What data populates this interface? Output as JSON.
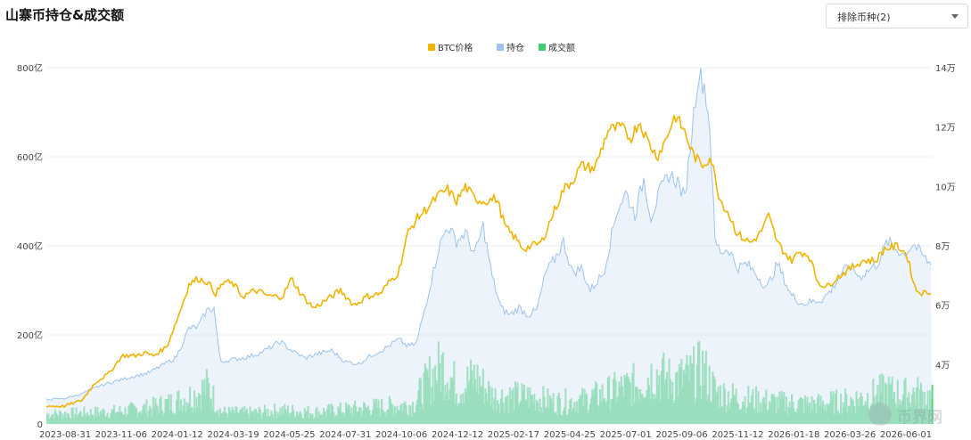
{
  "header": {
    "title": "山寨币持仓&成交额"
  },
  "filter": {
    "label": "排除币种(2)"
  },
  "watermark": {
    "text": "币界网"
  },
  "chart_data": {
    "type": "line",
    "legend_position": "top-center",
    "grid": true,
    "legend": [
      {
        "name": "BTC价格",
        "color": "#f0b400"
      },
      {
        "name": "持仓",
        "color": "#9cc3ee"
      },
      {
        "name": "成交额",
        "color": "#3ecf6f"
      }
    ],
    "y_left": {
      "ticks": [
        "0",
        "200亿",
        "400亿",
        "600亿",
        "800亿"
      ],
      "range": [
        0,
        800
      ],
      "unit": "亿"
    },
    "y_right": {
      "ticks": [
        "4万",
        "6万",
        "8万",
        "10万",
        "12万",
        "14万"
      ],
      "range": [
        2,
        14
      ],
      "unit": "万"
    },
    "x_ticks": [
      "2023-08-31",
      "2023-11-06",
      "2024-01-12",
      "2024-03-19",
      "2024-05-25",
      "2024-07-31",
      "2024-10-06",
      "2024-12-12",
      "2025-02-17",
      "2025-04-25",
      "2025-07-01",
      "2025-09-06",
      "2025-11-12",
      "2026-01-18",
      "2026-03-26",
      "2026-06-01"
    ],
    "series": [
      {
        "name": "BTC价格",
        "axis": "right",
        "color": "#f0b400",
        "points": [
          [
            0,
            2.6
          ],
          [
            20,
            2.6
          ],
          [
            40,
            2.8
          ],
          [
            55,
            3.4
          ],
          [
            70,
            3.7
          ],
          [
            85,
            4.3
          ],
          [
            100,
            4.3
          ],
          [
            110,
            4.4
          ],
          [
            120,
            4.3
          ],
          [
            135,
            4.6
          ],
          [
            150,
            5.8
          ],
          [
            160,
            6.7
          ],
          [
            170,
            6.9
          ],
          [
            180,
            6.8
          ],
          [
            190,
            6.4
          ],
          [
            200,
            6.8
          ],
          [
            210,
            6.7
          ],
          [
            220,
            6.3
          ],
          [
            235,
            6.5
          ],
          [
            250,
            6.3
          ],
          [
            265,
            6.3
          ],
          [
            275,
            6.9
          ],
          [
            285,
            6.4
          ],
          [
            300,
            5.9
          ],
          [
            315,
            6.2
          ],
          [
            330,
            6.5
          ],
          [
            345,
            6.0
          ],
          [
            360,
            6.3
          ],
          [
            375,
            6.4
          ],
          [
            385,
            6.8
          ],
          [
            395,
            7.1
          ],
          [
            405,
            8.4
          ],
          [
            415,
            8.9
          ],
          [
            425,
            9.2
          ],
          [
            440,
            9.7
          ],
          [
            450,
            9.9
          ],
          [
            460,
            9.5
          ],
          [
            470,
            10.0
          ],
          [
            480,
            9.6
          ],
          [
            490,
            9.5
          ],
          [
            505,
            9.6
          ],
          [
            515,
            8.6
          ],
          [
            525,
            8.3
          ],
          [
            535,
            7.9
          ],
          [
            545,
            8.0
          ],
          [
            555,
            8.1
          ],
          [
            570,
            9.2
          ],
          [
            580,
            9.9
          ],
          [
            590,
            10.2
          ],
          [
            600,
            10.7
          ],
          [
            615,
            10.6
          ],
          [
            630,
            11.9
          ],
          [
            645,
            12.0
          ],
          [
            655,
            11.6
          ],
          [
            665,
            12.2
          ],
          [
            675,
            11.5
          ],
          [
            685,
            11.0
          ],
          [
            695,
            11.6
          ],
          [
            705,
            12.4
          ],
          [
            715,
            11.9
          ],
          [
            725,
            11.1
          ],
          [
            735,
            10.7
          ],
          [
            745,
            11.0
          ],
          [
            755,
            9.6
          ],
          [
            765,
            9.1
          ],
          [
            775,
            8.4
          ],
          [
            790,
            8.1
          ],
          [
            800,
            8.4
          ],
          [
            810,
            9.0
          ],
          [
            820,
            8.1
          ],
          [
            835,
            7.5
          ],
          [
            845,
            7.8
          ],
          [
            855,
            7.7
          ],
          [
            865,
            6.8
          ],
          [
            875,
            6.6
          ],
          [
            885,
            6.9
          ],
          [
            900,
            7.2
          ],
          [
            915,
            7.5
          ],
          [
            930,
            7.5
          ],
          [
            940,
            7.9
          ],
          [
            955,
            8.0
          ],
          [
            965,
            7.7
          ],
          [
            975,
            6.5
          ],
          [
            985,
            6.4
          ],
          [
            993,
            6.5
          ]
        ]
      },
      {
        "name": "持仓",
        "axis": "left",
        "color": "#9cc3ee",
        "points": [
          [
            0,
            55
          ],
          [
            20,
            57
          ],
          [
            40,
            68
          ],
          [
            55,
            82
          ],
          [
            70,
            92
          ],
          [
            85,
            100
          ],
          [
            100,
            108
          ],
          [
            115,
            115
          ],
          [
            130,
            132
          ],
          [
            145,
            148
          ],
          [
            160,
            215
          ],
          [
            170,
            218
          ],
          [
            180,
            255
          ],
          [
            188,
            260
          ],
          [
            195,
            140
          ],
          [
            210,
            145
          ],
          [
            225,
            150
          ],
          [
            240,
            160
          ],
          [
            250,
            170
          ],
          [
            262,
            185
          ],
          [
            275,
            165
          ],
          [
            290,
            148
          ],
          [
            305,
            158
          ],
          [
            320,
            165
          ],
          [
            335,
            140
          ],
          [
            350,
            135
          ],
          [
            365,
            155
          ],
          [
            380,
            170
          ],
          [
            395,
            190
          ],
          [
            405,
            175
          ],
          [
            415,
            180
          ],
          [
            428,
            290
          ],
          [
            440,
            395
          ],
          [
            450,
            445
          ],
          [
            460,
            410
          ],
          [
            470,
            430
          ],
          [
            480,
            380
          ],
          [
            490,
            445
          ],
          [
            500,
            330
          ],
          [
            510,
            260
          ],
          [
            520,
            245
          ],
          [
            530,
            262
          ],
          [
            540,
            245
          ],
          [
            550,
            255
          ],
          [
            560,
            340
          ],
          [
            570,
            370
          ],
          [
            580,
            410
          ],
          [
            590,
            340
          ],
          [
            600,
            350
          ],
          [
            610,
            300
          ],
          [
            625,
            340
          ],
          [
            640,
            480
          ],
          [
            650,
            520
          ],
          [
            660,
            470
          ],
          [
            670,
            550
          ],
          [
            678,
            465
          ],
          [
            688,
            520
          ],
          [
            698,
            560
          ],
          [
            708,
            545
          ],
          [
            716,
            505
          ],
          [
            724,
            660
          ],
          [
            731,
            790
          ],
          [
            738,
            760
          ],
          [
            744,
            670
          ],
          [
            750,
            410
          ],
          [
            757,
            385
          ],
          [
            765,
            395
          ],
          [
            775,
            350
          ],
          [
            785,
            360
          ],
          [
            795,
            340
          ],
          [
            808,
            305
          ],
          [
            820,
            360
          ],
          [
            835,
            290
          ],
          [
            848,
            270
          ],
          [
            860,
            275
          ],
          [
            870,
            280
          ],
          [
            880,
            300
          ],
          [
            892,
            340
          ],
          [
            902,
            355
          ],
          [
            912,
            330
          ],
          [
            922,
            345
          ],
          [
            932,
            360
          ],
          [
            943,
            410
          ],
          [
            952,
            395
          ],
          [
            962,
            380
          ],
          [
            972,
            405
          ],
          [
            982,
            380
          ],
          [
            993,
            355
          ]
        ]
      },
      {
        "name": "成交额",
        "axis": "left",
        "color": "#3ecf6f",
        "points": [
          [
            0,
            25
          ],
          [
            40,
            28
          ],
          [
            80,
            32
          ],
          [
            110,
            40
          ],
          [
            140,
            55
          ],
          [
            165,
            75
          ],
          [
            180,
            95
          ],
          [
            195,
            30
          ],
          [
            230,
            28
          ],
          [
            260,
            35
          ],
          [
            300,
            30
          ],
          [
            340,
            38
          ],
          [
            380,
            45
          ],
          [
            410,
            50
          ],
          [
            430,
            120
          ],
          [
            445,
            150
          ],
          [
            460,
            90
          ],
          [
            480,
            120
          ],
          [
            500,
            70
          ],
          [
            540,
            70
          ],
          [
            570,
            55
          ],
          [
            600,
            60
          ],
          [
            630,
            80
          ],
          [
            660,
            100
          ],
          [
            680,
            130
          ],
          [
            700,
            110
          ],
          [
            720,
            120
          ],
          [
            735,
            140
          ],
          [
            750,
            80
          ],
          [
            780,
            65
          ],
          [
            820,
            55
          ],
          [
            860,
            50
          ],
          [
            880,
            55
          ],
          [
            900,
            60
          ],
          [
            920,
            70
          ],
          [
            940,
            85
          ],
          [
            960,
            75
          ],
          [
            975,
            80
          ],
          [
            993,
            65
          ]
        ]
      }
    ]
  }
}
